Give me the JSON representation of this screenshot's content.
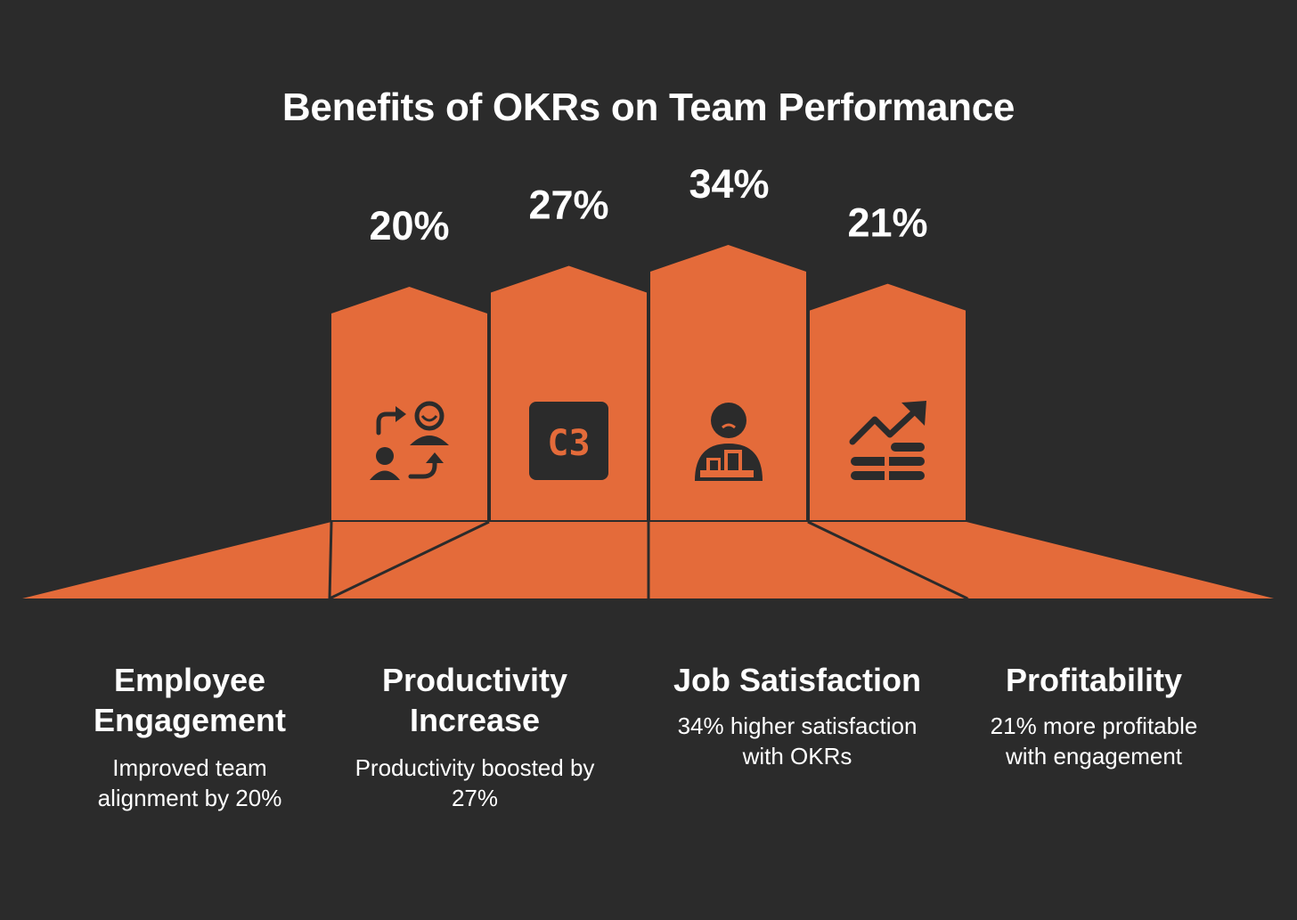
{
  "title": "Benefits of OKRs on Team Performance",
  "colors": {
    "background": "#2b2b2b",
    "accent": "#e46b3a",
    "outline": "#2b2b2b",
    "text": "#ffffff"
  },
  "chart_data": {
    "type": "bar",
    "categories": [
      "Employee Engagement",
      "Productivity Increase",
      "Job Satisfaction",
      "Profitability"
    ],
    "values": [
      20,
      27,
      34,
      21
    ],
    "value_labels": [
      "20%",
      "27%",
      "34%",
      "21%"
    ],
    "icons": [
      "people-exchange-icon",
      "c3-box-icon",
      "person-desk-icon",
      "growth-coins-icon"
    ],
    "icon_text": [
      "",
      "C3",
      "",
      ""
    ]
  },
  "columns": [
    {
      "heading": "Employee Engagement",
      "description": "Improved team alignment by 20%"
    },
    {
      "heading": "Productivity Increase",
      "description": "Productivity boosted by 27%"
    },
    {
      "heading": "Job Satisfaction",
      "description": "34% higher satisfaction with OKRs"
    },
    {
      "heading": "Profitability",
      "description": "21% more profitable with engagement"
    }
  ]
}
